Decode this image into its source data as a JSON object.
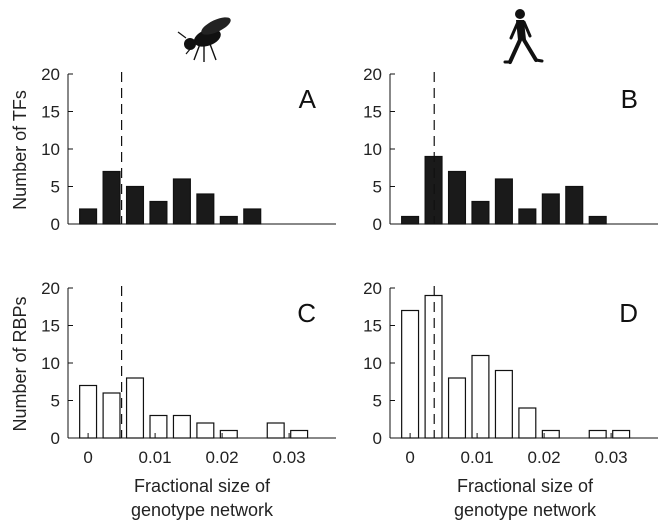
{
  "chart_data": [
    {
      "type": "bar",
      "panel": "A",
      "organism_icon": "fly-icon",
      "fill": "#1a1a1a",
      "ylabel": "Number of TFs",
      "xlabel": "",
      "ylim": [
        0,
        20
      ],
      "yticks": [
        "0",
        "5",
        "10",
        "15",
        "20"
      ],
      "xlim": [
        -0.003,
        0.037
      ],
      "xticks": [],
      "bin_centers": [
        0.0,
        0.0035,
        0.007,
        0.0105,
        0.014,
        0.0175,
        0.021,
        0.0245,
        0.028,
        0.0315,
        0.035
      ],
      "values": [
        2,
        7,
        5,
        3,
        6,
        4,
        1,
        2,
        0,
        0,
        0
      ],
      "dashed_line_x": 0.005
    },
    {
      "type": "bar",
      "panel": "B",
      "organism_icon": "human-walking-icon",
      "fill": "#1a1a1a",
      "ylabel": "",
      "xlabel": "",
      "ylim": [
        0,
        20
      ],
      "yticks": [
        "0",
        "5",
        "10",
        "15",
        "20"
      ],
      "xlim": [
        -0.003,
        0.037
      ],
      "xticks": [],
      "bin_centers": [
        0.0,
        0.0035,
        0.007,
        0.0105,
        0.014,
        0.0175,
        0.021,
        0.0245,
        0.028,
        0.0315,
        0.035
      ],
      "values": [
        1,
        9,
        7,
        3,
        6,
        2,
        4,
        5,
        1,
        0,
        0
      ],
      "dashed_line_x": 0.0036
    },
    {
      "type": "bar",
      "panel": "C",
      "fill": "#ffffff",
      "ylabel": "Number of RBPs",
      "xlabel": "Fractional size of genotype network",
      "xlabel_lines": [
        "Fractional size of",
        "genotype network"
      ],
      "ylim": [
        0,
        20
      ],
      "yticks": [
        "0",
        "5",
        "10",
        "15",
        "20"
      ],
      "xlim": [
        -0.003,
        0.037
      ],
      "xticks": [
        {
          "value": 0,
          "label": "0"
        },
        {
          "value": 0.01,
          "label": "0.01"
        },
        {
          "value": 0.02,
          "label": "0.02"
        },
        {
          "value": 0.03,
          "label": "0.03"
        }
      ],
      "bin_centers": [
        0.0,
        0.0035,
        0.007,
        0.0105,
        0.014,
        0.0175,
        0.021,
        0.0245,
        0.028,
        0.0315,
        0.035
      ],
      "values": [
        7,
        6,
        8,
        3,
        3,
        2,
        1,
        0,
        2,
        1,
        0
      ],
      "dashed_line_x": 0.005
    },
    {
      "type": "bar",
      "panel": "D",
      "fill": "#ffffff",
      "ylabel": "",
      "xlabel": "Fractional size of genotype network",
      "xlabel_lines": [
        "Fractional size of",
        "genotype network"
      ],
      "ylim": [
        0,
        20
      ],
      "yticks": [
        "0",
        "5",
        "10",
        "15",
        "20"
      ],
      "xlim": [
        -0.003,
        0.037
      ],
      "xticks": [
        {
          "value": 0,
          "label": "0"
        },
        {
          "value": 0.01,
          "label": "0.01"
        },
        {
          "value": 0.02,
          "label": "0.02"
        },
        {
          "value": 0.03,
          "label": "0.03"
        }
      ],
      "bin_centers": [
        0.0,
        0.0035,
        0.007,
        0.0105,
        0.014,
        0.0175,
        0.021,
        0.0245,
        0.028,
        0.0315,
        0.035
      ],
      "values": [
        17,
        19,
        8,
        11,
        9,
        4,
        1,
        0,
        1,
        1,
        0
      ],
      "dashed_line_x": 0.0036
    }
  ]
}
